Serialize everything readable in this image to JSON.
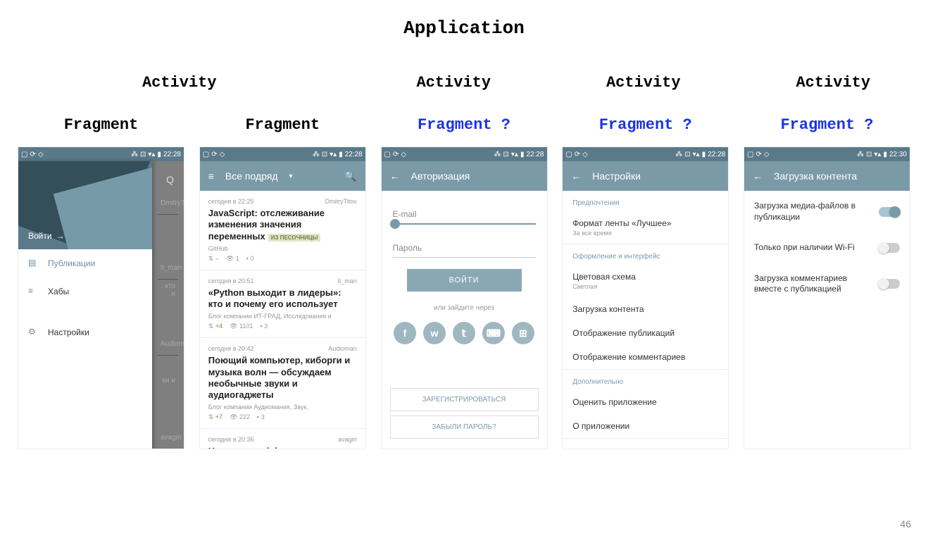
{
  "page_number": "46",
  "headings": {
    "app": "Application",
    "activity": "Activity",
    "fragment": "Fragment",
    "fragment_q": "Fragment ?"
  },
  "colors": {
    "fragment_q": "#1a33e6",
    "appbar_bg": "#7b9aa8",
    "statusbar_bg": "#5a7a8a"
  },
  "status_time": "22:28",
  "status_time_5": "22:30",
  "screen1": {
    "login": "Войти",
    "items": [
      {
        "icon": "doc",
        "label": "Публикации",
        "active": true
      },
      {
        "icon": "list",
        "label": "Хабы",
        "active": false
      },
      {
        "icon": "gear",
        "label": "Настройки",
        "active": false
      }
    ],
    "dim_rows": [
      "DmitryTitov",
      "it_man",
      ": кто и",
      "Audioman",
      "ки и",
      "avagin"
    ],
    "search_icon": "Q"
  },
  "screen2": {
    "appbar_title": "Все подряд",
    "items": [
      {
        "time": "сегодня в 22:25",
        "author": "DmitryTitov",
        "title": "JavaScript: отслеживание изменения значения переменных",
        "tag": "ИЗ ПЕСОЧНИЦЫ",
        "sub": "GitHub",
        "stats": {
          "rating": "–",
          "views": "1",
          "comments": "0"
        }
      },
      {
        "time": "сегодня в 20:51",
        "author": "it_man",
        "title": "«Python выходит в лидеры»: кто и почему его использует",
        "sub": "Блог компании ИТ-ГРАД, Исследования и",
        "stats": {
          "rating": "+4",
          "views": "1101",
          "comments": "3"
        }
      },
      {
        "time": "сегодня в 20:42",
        "author": "Audioman",
        "title": "Поющий компьютер, киборги и музыка волн — обсуждаем необычные звуки и аудиогаджеты",
        "sub": "Блог компании Аудиомания, Звук,",
        "stats": {
          "rating": "+7",
          "views": "222",
          "comments": "3"
        }
      },
      {
        "time": "сегодня в 20:36",
        "author": "avagin",
        "title": "Насколько эффективна"
      }
    ]
  },
  "screen3": {
    "appbar_title": "Авторизация",
    "email_placeholder": "E-mail",
    "password_placeholder": "Пароль",
    "login_btn": "ВОЙТИ",
    "or_text": "или зайдите через",
    "socials": [
      "f",
      "w",
      "t",
      "g",
      "m"
    ],
    "register_btn": "ЗАРЕГИСТРИРОВАТЬСЯ",
    "forgot_btn": "ЗАБЫЛИ ПАРОЛЬ?"
  },
  "screen4": {
    "appbar_title": "Настройки",
    "sections": [
      {
        "header": "Предпочтения",
        "items": [
          {
            "label": "Формат ленты «Лучшее»",
            "sub": "За все время"
          }
        ]
      },
      {
        "header": "Оформление и интерфейс",
        "items": [
          {
            "label": "Цветовая схема",
            "sub": "Светлая"
          },
          {
            "label": "Загрузка контента"
          },
          {
            "label": "Отображение публикаций"
          },
          {
            "label": "Отображение комментариев"
          }
        ]
      },
      {
        "header": "Дополнительно",
        "items": [
          {
            "label": "Оценить приложение"
          },
          {
            "label": "О приложении"
          }
        ]
      }
    ]
  },
  "screen5": {
    "appbar_title": "Загрузка контента",
    "items": [
      {
        "label": "Загрузка медиа-файлов в публикации",
        "on": true
      },
      {
        "label": "Только при наличии Wi-Fi",
        "on": false
      },
      {
        "label": "Загрузка комментариев вместе с публикацией",
        "on": false
      }
    ]
  }
}
